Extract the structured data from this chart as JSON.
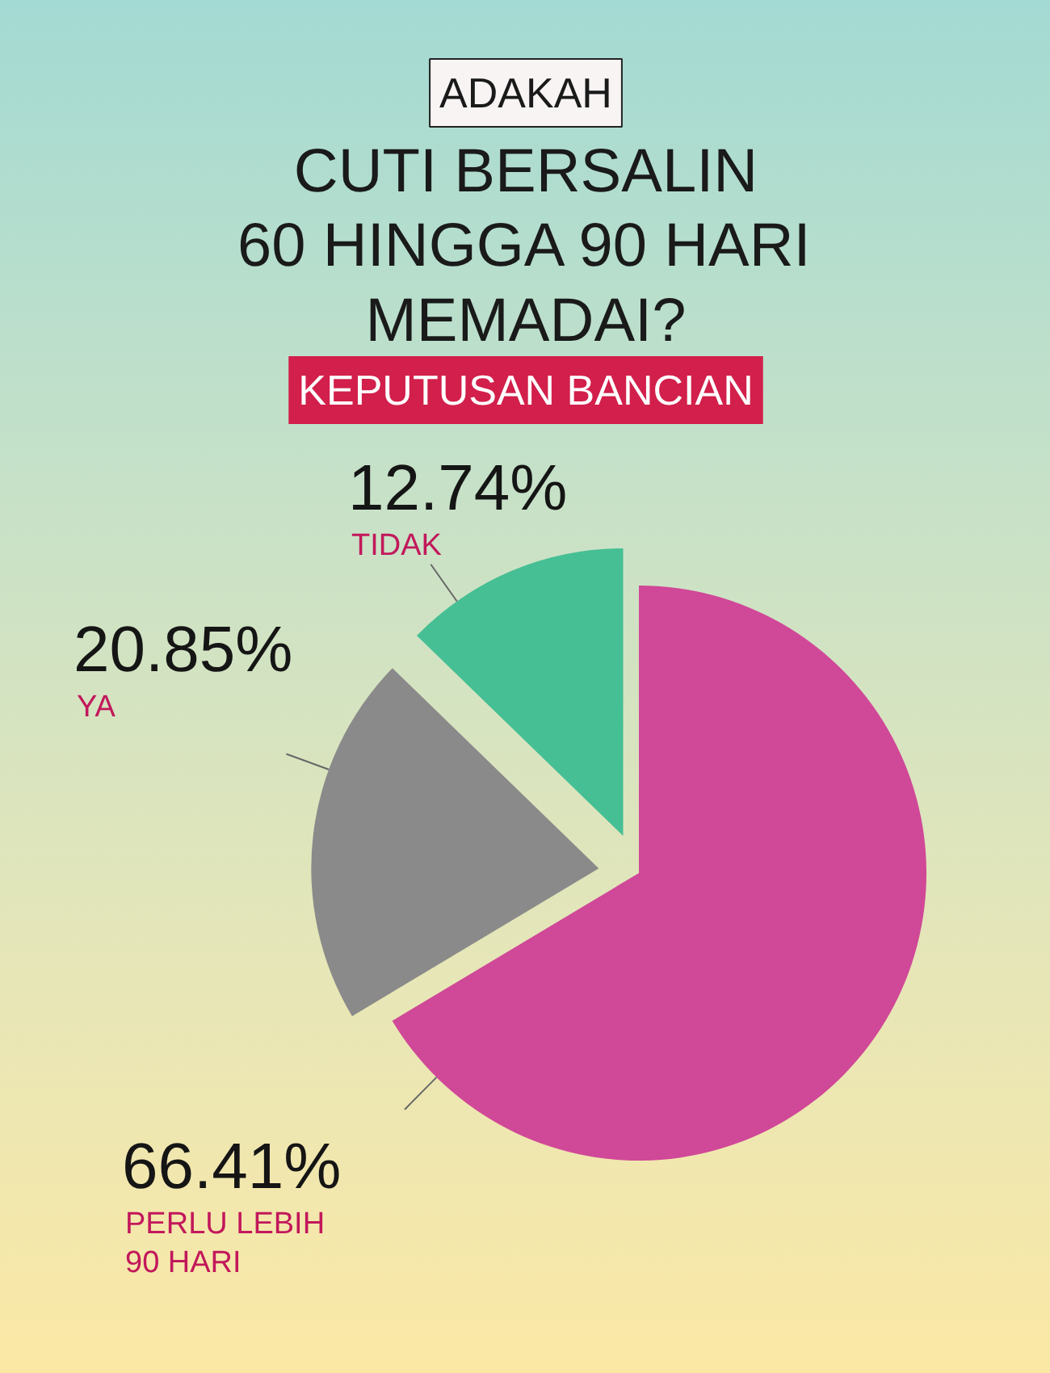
{
  "chart_data": {
    "type": "pie",
    "title": "CUTI BERSALIN\n60 HINGGA 90 HARI\nMEMADAI?",
    "subtitle": "KEPUTUSAN BANCIAN",
    "annotations": [
      "ADAKAH"
    ],
    "categories": [
      "PERLU LEBIH 90 HARI",
      "YA",
      "TIDAK"
    ],
    "values": [
      66.41,
      20.85,
      12.74
    ],
    "colors": [
      "#d04898",
      "#8a8a8a",
      "#46bf94"
    ],
    "value_labels": [
      "66.41%",
      "20.85%",
      "12.74%"
    ]
  }
}
